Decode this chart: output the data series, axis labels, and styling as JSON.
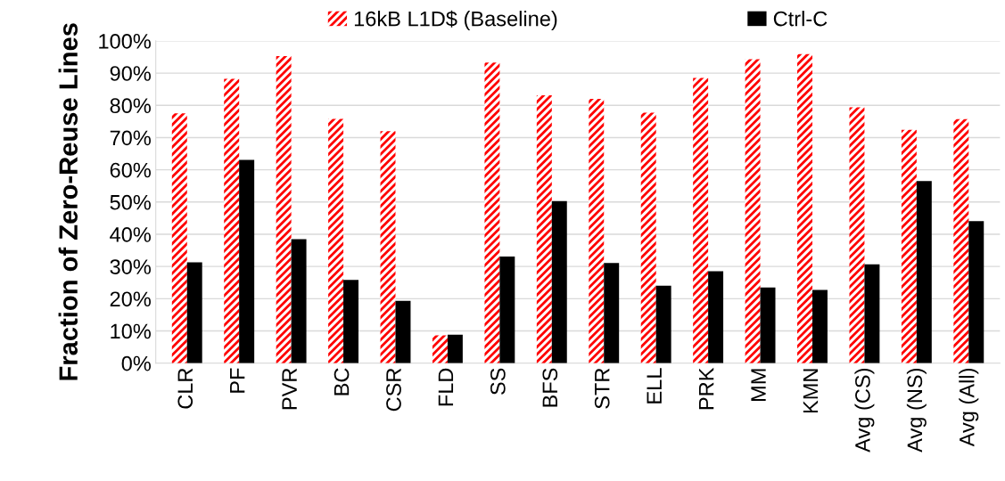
{
  "chart_data": {
    "type": "bar",
    "ylabel": "Fraction of Zero-Reuse Lines",
    "categories": [
      "CLR",
      "PF",
      "PVR",
      "BC",
      "CSR",
      "FLD",
      "SS",
      "BFS",
      "STR",
      "ELL",
      "PRK",
      "MM",
      "KMN",
      "Avg (CS)",
      "Avg (NS)",
      "Avg (All)"
    ],
    "series": [
      {
        "name": "16kB L1D$ (Baseline)",
        "color": "#ff0000",
        "values": [
          77.5,
          88.2,
          95.3,
          75.8,
          72.0,
          8.6,
          93.3,
          83.1,
          82.0,
          77.7,
          88.5,
          94.3,
          95.9,
          79.4,
          72.4,
          75.7
        ]
      },
      {
        "name": "Ctrl-C",
        "color": "#000000",
        "values": [
          31.3,
          63.1,
          38.5,
          25.8,
          19.3,
          8.8,
          33.1,
          50.3,
          31.1,
          24.0,
          28.5,
          23.5,
          22.7,
          30.7,
          56.5,
          44.1
        ]
      }
    ],
    "ylim": [
      0,
      100
    ],
    "yticks": [
      {
        "value": 0,
        "label": "0%"
      },
      {
        "value": 10,
        "label": "10%"
      },
      {
        "value": 20,
        "label": "20%"
      },
      {
        "value": 30,
        "label": "30%"
      },
      {
        "value": 40,
        "label": "40%"
      },
      {
        "value": 50,
        "label": "50%"
      },
      {
        "value": 60,
        "label": "60%"
      },
      {
        "value": 70,
        "label": "70%"
      },
      {
        "value": 80,
        "label": "80%"
      },
      {
        "value": 90,
        "label": "90%"
      },
      {
        "value": 100,
        "label": "100%"
      }
    ],
    "grid": "y",
    "legend": "top"
  }
}
